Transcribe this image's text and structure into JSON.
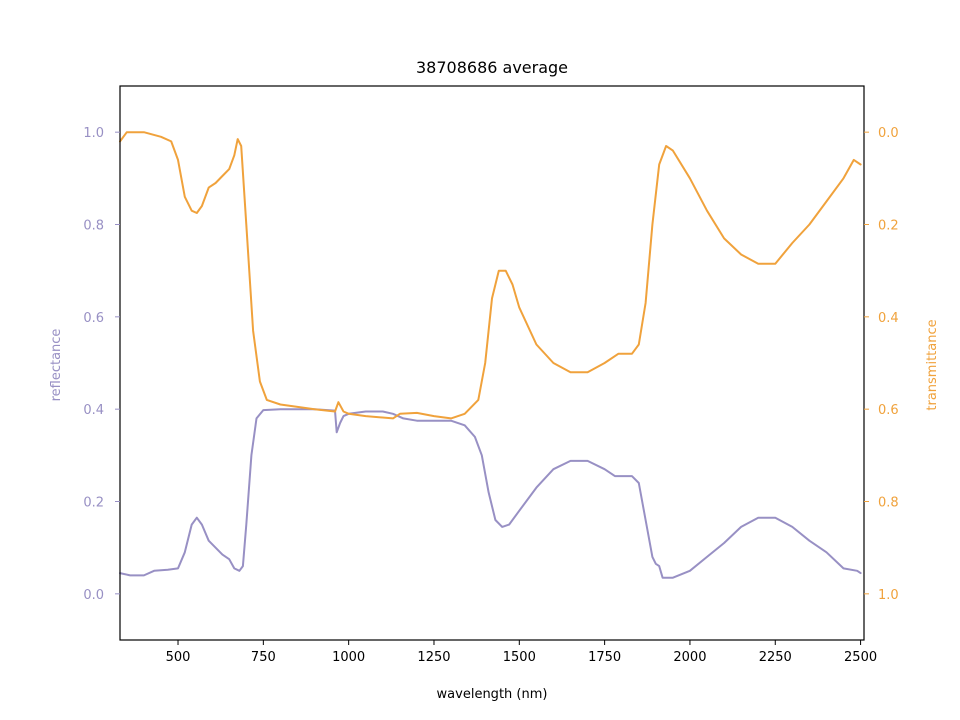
{
  "chart_data": {
    "type": "line",
    "title": "38708686 average",
    "xlabel": "wavelength (nm)",
    "ylabel_left": "reflectance",
    "ylabel_right": "transmittance",
    "xlim": [
      330,
      2510
    ],
    "ylim_left": [
      -0.1,
      1.1
    ],
    "ylim_right": [
      1.1,
      -0.1
    ],
    "right_axis_inverted": true,
    "grid": false,
    "x_ticks": [
      500,
      750,
      1000,
      1250,
      1500,
      1750,
      2000,
      2250,
      2500
    ],
    "y_left_ticks": [
      0.0,
      0.2,
      0.4,
      0.6,
      0.8,
      1.0
    ],
    "y_right_ticks": [
      0.0,
      0.2,
      0.4,
      0.6,
      0.8,
      1.0
    ],
    "colors": {
      "reflectance": "#9890c4",
      "transmittance": "#f0a23c",
      "axis": "#000000"
    },
    "series": [
      {
        "name": "reflectance",
        "axis": "left",
        "points": [
          [
            330,
            0.045
          ],
          [
            360,
            0.04
          ],
          [
            400,
            0.04
          ],
          [
            430,
            0.05
          ],
          [
            470,
            0.052
          ],
          [
            500,
            0.055
          ],
          [
            520,
            0.09
          ],
          [
            540,
            0.15
          ],
          [
            555,
            0.165
          ],
          [
            570,
            0.15
          ],
          [
            590,
            0.115
          ],
          [
            610,
            0.1
          ],
          [
            630,
            0.085
          ],
          [
            650,
            0.075
          ],
          [
            665,
            0.055
          ],
          [
            680,
            0.05
          ],
          [
            690,
            0.06
          ],
          [
            700,
            0.15
          ],
          [
            715,
            0.3
          ],
          [
            730,
            0.38
          ],
          [
            750,
            0.398
          ],
          [
            800,
            0.4
          ],
          [
            900,
            0.4
          ],
          [
            960,
            0.397
          ],
          [
            965,
            0.35
          ],
          [
            975,
            0.37
          ],
          [
            985,
            0.385
          ],
          [
            1000,
            0.39
          ],
          [
            1050,
            0.395
          ],
          [
            1100,
            0.395
          ],
          [
            1130,
            0.39
          ],
          [
            1160,
            0.38
          ],
          [
            1200,
            0.375
          ],
          [
            1300,
            0.375
          ],
          [
            1340,
            0.365
          ],
          [
            1370,
            0.34
          ],
          [
            1390,
            0.3
          ],
          [
            1410,
            0.22
          ],
          [
            1430,
            0.16
          ],
          [
            1450,
            0.145
          ],
          [
            1470,
            0.15
          ],
          [
            1500,
            0.18
          ],
          [
            1550,
            0.23
          ],
          [
            1600,
            0.27
          ],
          [
            1650,
            0.288
          ],
          [
            1700,
            0.288
          ],
          [
            1750,
            0.27
          ],
          [
            1780,
            0.255
          ],
          [
            1830,
            0.255
          ],
          [
            1850,
            0.24
          ],
          [
            1870,
            0.16
          ],
          [
            1890,
            0.08
          ],
          [
            1900,
            0.065
          ],
          [
            1910,
            0.06
          ],
          [
            1920,
            0.035
          ],
          [
            1950,
            0.035
          ],
          [
            2000,
            0.05
          ],
          [
            2050,
            0.08
          ],
          [
            2100,
            0.11
          ],
          [
            2150,
            0.145
          ],
          [
            2200,
            0.165
          ],
          [
            2250,
            0.165
          ],
          [
            2300,
            0.145
          ],
          [
            2350,
            0.115
          ],
          [
            2400,
            0.09
          ],
          [
            2450,
            0.055
          ],
          [
            2490,
            0.05
          ],
          [
            2500,
            0.045
          ]
        ]
      },
      {
        "name": "transmittance",
        "axis": "right",
        "points": [
          [
            330,
            0.02
          ],
          [
            350,
            0.0
          ],
          [
            400,
            0.0
          ],
          [
            450,
            0.01
          ],
          [
            480,
            0.02
          ],
          [
            500,
            0.06
          ],
          [
            520,
            0.14
          ],
          [
            540,
            0.17
          ],
          [
            555,
            0.175
          ],
          [
            570,
            0.16
          ],
          [
            590,
            0.12
          ],
          [
            610,
            0.11
          ],
          [
            630,
            0.095
          ],
          [
            650,
            0.08
          ],
          [
            665,
            0.05
          ],
          [
            675,
            0.015
          ],
          [
            685,
            0.03
          ],
          [
            700,
            0.2
          ],
          [
            720,
            0.43
          ],
          [
            740,
            0.54
          ],
          [
            760,
            0.58
          ],
          [
            800,
            0.59
          ],
          [
            900,
            0.6
          ],
          [
            960,
            0.605
          ],
          [
            970,
            0.585
          ],
          [
            985,
            0.605
          ],
          [
            1000,
            0.61
          ],
          [
            1050,
            0.615
          ],
          [
            1130,
            0.62
          ],
          [
            1150,
            0.61
          ],
          [
            1200,
            0.608
          ],
          [
            1250,
            0.615
          ],
          [
            1300,
            0.62
          ],
          [
            1340,
            0.61
          ],
          [
            1380,
            0.58
          ],
          [
            1400,
            0.5
          ],
          [
            1420,
            0.36
          ],
          [
            1440,
            0.3
          ],
          [
            1460,
            0.3
          ],
          [
            1480,
            0.33
          ],
          [
            1500,
            0.38
          ],
          [
            1550,
            0.46
          ],
          [
            1600,
            0.5
          ],
          [
            1650,
            0.52
          ],
          [
            1700,
            0.52
          ],
          [
            1750,
            0.5
          ],
          [
            1790,
            0.48
          ],
          [
            1830,
            0.48
          ],
          [
            1850,
            0.46
          ],
          [
            1870,
            0.37
          ],
          [
            1890,
            0.2
          ],
          [
            1910,
            0.07
          ],
          [
            1930,
            0.03
          ],
          [
            1950,
            0.04
          ],
          [
            2000,
            0.1
          ],
          [
            2050,
            0.17
          ],
          [
            2100,
            0.23
          ],
          [
            2150,
            0.265
          ],
          [
            2200,
            0.285
          ],
          [
            2250,
            0.285
          ],
          [
            2300,
            0.24
          ],
          [
            2350,
            0.2
          ],
          [
            2400,
            0.15
          ],
          [
            2450,
            0.1
          ],
          [
            2480,
            0.06
          ],
          [
            2500,
            0.07
          ]
        ]
      }
    ]
  }
}
